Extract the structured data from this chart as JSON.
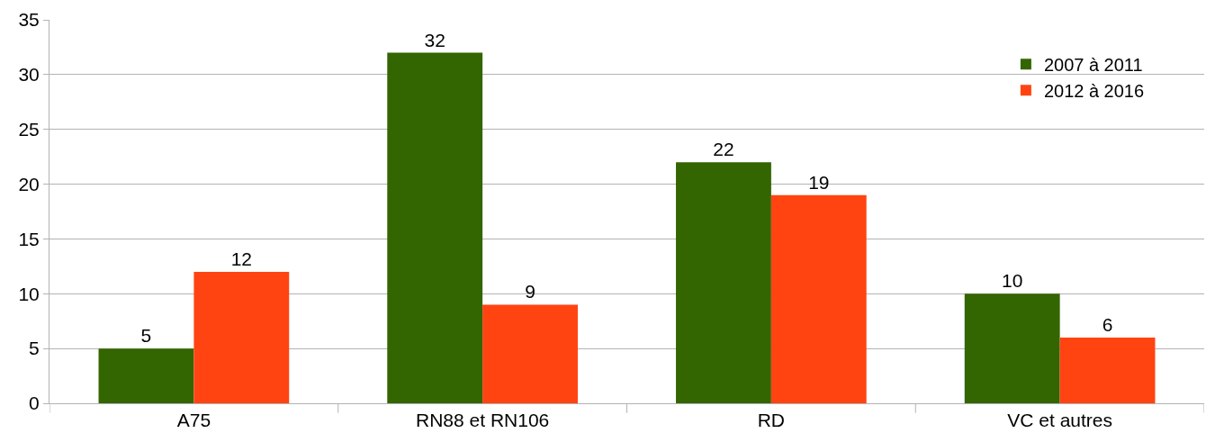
{
  "chart_data": {
    "type": "bar",
    "categories": [
      "A75",
      "RN88 et RN106",
      "RD",
      "VC et autres"
    ],
    "series": [
      {
        "name": "2007 à 2011",
        "color": "#336600",
        "values": [
          5,
          32,
          22,
          10
        ]
      },
      {
        "name": "2012 à 2016",
        "color": "#ff4411",
        "values": [
          12,
          9,
          19,
          6
        ]
      }
    ],
    "ylim": [
      0,
      35
    ],
    "yticks": [
      0,
      5,
      10,
      15,
      20,
      25,
      30,
      35
    ],
    "grid": "y",
    "legend": "top right",
    "data_labels": true
  }
}
